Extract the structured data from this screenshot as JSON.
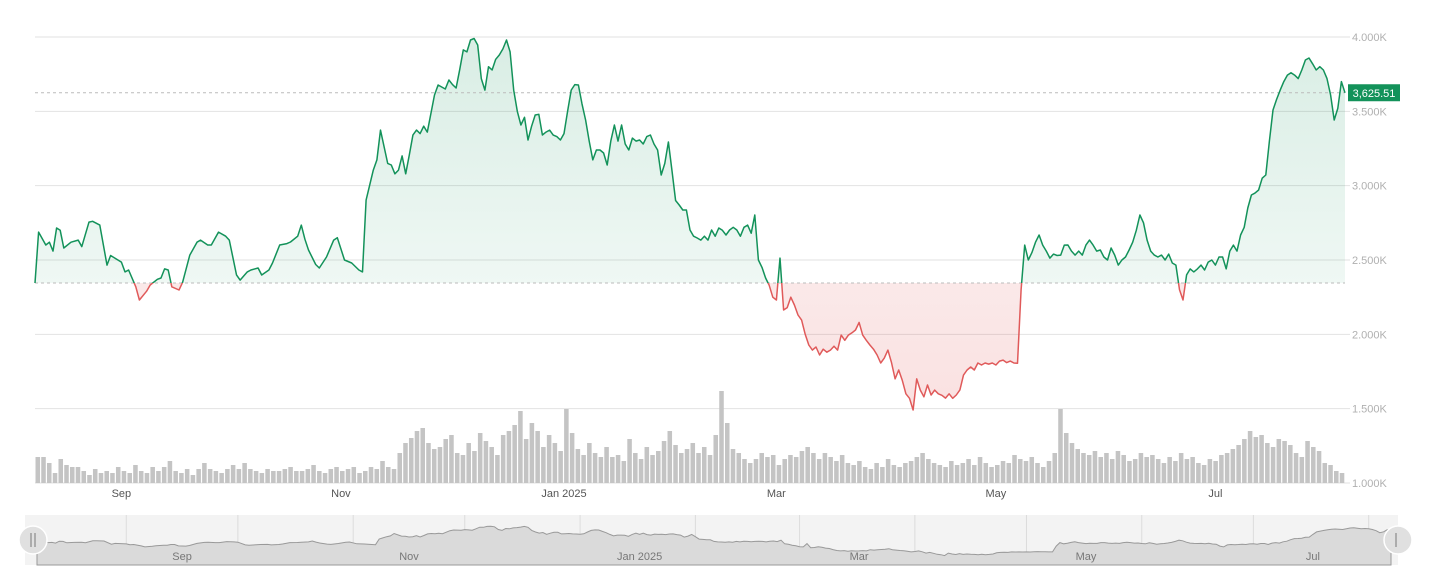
{
  "chart_data": {
    "type": "area",
    "title": "",
    "start_date": "2024-08-08",
    "current_price_label": "3,625.51",
    "baseline_price": 2345,
    "ylim": [
      1000,
      4000
    ],
    "y_ticks": [
      {
        "value": 4000,
        "label": "4.000K"
      },
      {
        "value": 3500,
        "label": "3.500K"
      },
      {
        "value": 3000,
        "label": "3.000K"
      },
      {
        "value": 2500,
        "label": "2.500K"
      },
      {
        "value": 2000,
        "label": "2.000K"
      },
      {
        "value": 1500,
        "label": "1.500K"
      },
      {
        "value": 1000,
        "label": "1.000K"
      }
    ],
    "x_ticks": [
      {
        "day": 24,
        "label": "Sep"
      },
      {
        "day": 85,
        "label": "Nov"
      },
      {
        "day": 147,
        "label": "Jan 2025"
      },
      {
        "day": 206,
        "label": "Mar"
      },
      {
        "day": 267,
        "label": "May"
      },
      {
        "day": 328,
        "label": "Jul"
      }
    ],
    "navigator_ticks": [
      {
        "day": 39,
        "label": "Sep"
      },
      {
        "day": 100,
        "label": "Nov"
      },
      {
        "day": 162,
        "label": "Jan 2025"
      },
      {
        "day": 221,
        "label": "Mar"
      },
      {
        "day": 282,
        "label": "May"
      },
      {
        "day": 343,
        "label": "Jul"
      }
    ],
    "navigator_month_lines": [
      24,
      54,
      85,
      115,
      146,
      177,
      205,
      236,
      266,
      297,
      327,
      358
    ],
    "colors": {
      "up": "#13925a",
      "down": "#e05a5a",
      "badge": "#13925a",
      "volume": "#c4c4c4"
    },
    "price_series": [
      [
        0,
        2345
      ],
      [
        1,
        2688
      ],
      [
        3,
        2601
      ],
      [
        4,
        2620
      ],
      [
        5,
        2560
      ],
      [
        6,
        2715
      ],
      [
        7,
        2700
      ],
      [
        8,
        2581
      ],
      [
        10,
        2620
      ],
      [
        12,
        2634
      ],
      [
        13,
        2590
      ],
      [
        15,
        2755
      ],
      [
        16,
        2760
      ],
      [
        18,
        2735
      ],
      [
        20,
        2466
      ],
      [
        21,
        2530
      ],
      [
        24,
        2486
      ],
      [
        25,
        2420
      ],
      [
        26,
        2433
      ],
      [
        28,
        2320
      ],
      [
        29,
        2231
      ],
      [
        31,
        2290
      ],
      [
        32,
        2332
      ],
      [
        34,
        2370
      ],
      [
        35,
        2379
      ],
      [
        36,
        2440
      ],
      [
        37,
        2433
      ],
      [
        38,
        2320
      ],
      [
        40,
        2298
      ],
      [
        41,
        2350
      ],
      [
        43,
        2533
      ],
      [
        45,
        2620
      ],
      [
        46,
        2634
      ],
      [
        48,
        2601
      ],
      [
        49,
        2601
      ],
      [
        51,
        2688
      ],
      [
        53,
        2660
      ],
      [
        54,
        2634
      ],
      [
        56,
        2400
      ],
      [
        57,
        2365
      ],
      [
        59,
        2420
      ],
      [
        60,
        2433
      ],
      [
        62,
        2446
      ],
      [
        63,
        2399
      ],
      [
        65,
        2433
      ],
      [
        66,
        2480
      ],
      [
        68,
        2601
      ],
      [
        70,
        2610
      ],
      [
        71,
        2621
      ],
      [
        73,
        2660
      ],
      [
        74,
        2735
      ],
      [
        75,
        2640
      ],
      [
        76,
        2567
      ],
      [
        78,
        2470
      ],
      [
        79,
        2446
      ],
      [
        81,
        2520
      ],
      [
        83,
        2634
      ],
      [
        84,
        2650
      ],
      [
        86,
        2500
      ],
      [
        88,
        2480
      ],
      [
        90,
        2433
      ],
      [
        91,
        2420
      ],
      [
        92,
        2903
      ],
      [
        94,
        3105
      ],
      [
        95,
        3173
      ],
      [
        96,
        3374
      ],
      [
        98,
        3150
      ],
      [
        99,
        3139
      ],
      [
        100,
        3080
      ],
      [
        101,
        3105
      ],
      [
        102,
        3200
      ],
      [
        103,
        3080
      ],
      [
        104,
        3206
      ],
      [
        105,
        3340
      ],
      [
        106,
        3374
      ],
      [
        107,
        3350
      ],
      [
        108,
        3400
      ],
      [
        109,
        3360
      ],
      [
        111,
        3610
      ],
      [
        112,
        3677
      ],
      [
        114,
        3650
      ],
      [
        115,
        3711
      ],
      [
        116,
        3680
      ],
      [
        117,
        3657
      ],
      [
        118,
        3780
      ],
      [
        119,
        3913
      ],
      [
        120,
        3900
      ],
      [
        121,
        3980
      ],
      [
        122,
        3990
      ],
      [
        123,
        3946
      ],
      [
        124,
        3720
      ],
      [
        125,
        3643
      ],
      [
        126,
        3800
      ],
      [
        127,
        3778
      ],
      [
        128,
        3850
      ],
      [
        129,
        3879
      ],
      [
        130,
        3920
      ],
      [
        131,
        3980
      ],
      [
        132,
        3900
      ],
      [
        133,
        3643
      ],
      [
        134,
        3500
      ],
      [
        135,
        3408
      ],
      [
        136,
        3460
      ],
      [
        137,
        3307
      ],
      [
        138,
        3400
      ],
      [
        139,
        3475
      ],
      [
        140,
        3480
      ],
      [
        141,
        3341
      ],
      [
        142,
        3360
      ],
      [
        143,
        3374
      ],
      [
        144,
        3340
      ],
      [
        145,
        3330
      ],
      [
        146,
        3307
      ],
      [
        147,
        3350
      ],
      [
        148,
        3500
      ],
      [
        149,
        3643
      ],
      [
        150,
        3680
      ],
      [
        151,
        3677
      ],
      [
        152,
        3550
      ],
      [
        153,
        3442
      ],
      [
        154,
        3300
      ],
      [
        155,
        3173
      ],
      [
        156,
        3240
      ],
      [
        157,
        3240
      ],
      [
        158,
        3220
      ],
      [
        159,
        3139
      ],
      [
        160,
        3300
      ],
      [
        161,
        3408
      ],
      [
        162,
        3300
      ],
      [
        163,
        3408
      ],
      [
        164,
        3280
      ],
      [
        165,
        3240
      ],
      [
        166,
        3320
      ],
      [
        167,
        3300
      ],
      [
        168,
        3307
      ],
      [
        169,
        3280
      ],
      [
        170,
        3330
      ],
      [
        171,
        3341
      ],
      [
        172,
        3280
      ],
      [
        173,
        3240
      ],
      [
        174,
        3072
      ],
      [
        175,
        3150
      ],
      [
        176,
        3294
      ],
      [
        177,
        3100
      ],
      [
        178,
        2900
      ],
      [
        179,
        2870
      ],
      [
        180,
        2836
      ],
      [
        181,
        2836
      ],
      [
        182,
        2702
      ],
      [
        183,
        2660
      ],
      [
        184,
        2648
      ],
      [
        185,
        2634
      ],
      [
        186,
        2660
      ],
      [
        187,
        2634
      ],
      [
        188,
        2702
      ],
      [
        189,
        2660
      ],
      [
        190,
        2715
      ],
      [
        191,
        2700
      ],
      [
        192,
        2668
      ],
      [
        193,
        2702
      ],
      [
        194,
        2720
      ],
      [
        195,
        2702
      ],
      [
        196,
        2660
      ],
      [
        197,
        2720
      ],
      [
        198,
        2735
      ],
      [
        199,
        2680
      ],
      [
        200,
        2803
      ],
      [
        201,
        2500
      ],
      [
        202,
        2450
      ],
      [
        203,
        2379
      ],
      [
        204,
        2330
      ],
      [
        205,
        2250
      ],
      [
        206,
        2231
      ],
      [
        207,
        2513
      ],
      [
        208,
        2164
      ],
      [
        209,
        2180
      ],
      [
        210,
        2250
      ],
      [
        211,
        2197
      ],
      [
        212,
        2130
      ],
      [
        213,
        2096
      ],
      [
        214,
        2000
      ],
      [
        215,
        1928
      ],
      [
        216,
        1894
      ],
      [
        217,
        1915
      ],
      [
        218,
        1861
      ],
      [
        219,
        1900
      ],
      [
        220,
        1880
      ],
      [
        221,
        1894
      ],
      [
        222,
        1920
      ],
      [
        223,
        1894
      ],
      [
        224,
        1995
      ],
      [
        225,
        1960
      ],
      [
        226,
        1995
      ],
      [
        227,
        2010
      ],
      [
        228,
        2029
      ],
      [
        229,
        2080
      ],
      [
        230,
        1995
      ],
      [
        231,
        1960
      ],
      [
        232,
        1928
      ],
      [
        233,
        1900
      ],
      [
        234,
        1861
      ],
      [
        235,
        1807
      ],
      [
        236,
        1840
      ],
      [
        237,
        1894
      ],
      [
        238,
        1810
      ],
      [
        239,
        1700
      ],
      [
        240,
        1760
      ],
      [
        241,
        1690
      ],
      [
        242,
        1600
      ],
      [
        243,
        1570
      ],
      [
        244,
        1491
      ],
      [
        245,
        1700
      ],
      [
        246,
        1625
      ],
      [
        247,
        1580
      ],
      [
        248,
        1659
      ],
      [
        249,
        1592
      ],
      [
        250,
        1625
      ],
      [
        251,
        1600
      ],
      [
        252,
        1590
      ],
      [
        253,
        1571
      ],
      [
        254,
        1600
      ],
      [
        255,
        1570
      ],
      [
        256,
        1592
      ],
      [
        257,
        1626
      ],
      [
        258,
        1726
      ],
      [
        259,
        1760
      ],
      [
        260,
        1780
      ],
      [
        261,
        1760
      ],
      [
        262,
        1807
      ],
      [
        263,
        1794
      ],
      [
        264,
        1807
      ],
      [
        265,
        1800
      ],
      [
        266,
        1807
      ],
      [
        267,
        1794
      ],
      [
        268,
        1820
      ],
      [
        269,
        1827
      ],
      [
        270,
        1810
      ],
      [
        271,
        1820
      ],
      [
        272,
        1807
      ],
      [
        273,
        1805
      ],
      [
        274,
        2300
      ],
      [
        275,
        2600
      ],
      [
        276,
        2500
      ],
      [
        277,
        2550
      ],
      [
        278,
        2620
      ],
      [
        279,
        2668
      ],
      [
        280,
        2600
      ],
      [
        281,
        2560
      ],
      [
        282,
        2513
      ],
      [
        283,
        2540
      ],
      [
        284,
        2530
      ],
      [
        285,
        2533
      ],
      [
        286,
        2600
      ],
      [
        287,
        2601
      ],
      [
        288,
        2560
      ],
      [
        289,
        2533
      ],
      [
        290,
        2560
      ],
      [
        291,
        2533
      ],
      [
        292,
        2600
      ],
      [
        293,
        2634
      ],
      [
        294,
        2600
      ],
      [
        295,
        2560
      ],
      [
        296,
        2567
      ],
      [
        297,
        2520
      ],
      [
        298,
        2500
      ],
      [
        299,
        2581
      ],
      [
        300,
        2533
      ],
      [
        301,
        2466
      ],
      [
        302,
        2500
      ],
      [
        303,
        2520
      ],
      [
        304,
        2567
      ],
      [
        305,
        2620
      ],
      [
        306,
        2700
      ],
      [
        307,
        2803
      ],
      [
        308,
        2750
      ],
      [
        309,
        2634
      ],
      [
        310,
        2560
      ],
      [
        311,
        2533
      ],
      [
        312,
        2520
      ],
      [
        313,
        2533
      ],
      [
        314,
        2500
      ],
      [
        315,
        2540
      ],
      [
        316,
        2480
      ],
      [
        317,
        2466
      ],
      [
        318,
        2300
      ],
      [
        319,
        2231
      ],
      [
        320,
        2400
      ],
      [
        321,
        2440
      ],
      [
        322,
        2420
      ],
      [
        323,
        2440
      ],
      [
        324,
        2466
      ],
      [
        325,
        2433
      ],
      [
        326,
        2486
      ],
      [
        327,
        2500
      ],
      [
        328,
        2466
      ],
      [
        329,
        2520
      ],
      [
        330,
        2520
      ],
      [
        331,
        2440
      ],
      [
        332,
        2560
      ],
      [
        333,
        2600
      ],
      [
        334,
        2560
      ],
      [
        335,
        2668
      ],
      [
        336,
        2720
      ],
      [
        337,
        2850
      ],
      [
        338,
        2937
      ],
      [
        339,
        2950
      ],
      [
        340,
        2971
      ],
      [
        341,
        3050
      ],
      [
        342,
        3072
      ],
      [
        343,
        3300
      ],
      [
        344,
        3509
      ],
      [
        345,
        3580
      ],
      [
        346,
        3643
      ],
      [
        347,
        3700
      ],
      [
        348,
        3744
      ],
      [
        349,
        3760
      ],
      [
        350,
        3744
      ],
      [
        351,
        3720
      ],
      [
        352,
        3778
      ],
      [
        353,
        3845
      ],
      [
        354,
        3859
      ],
      [
        355,
        3820
      ],
      [
        356,
        3778
      ],
      [
        357,
        3800
      ],
      [
        358,
        3778
      ],
      [
        359,
        3720
      ],
      [
        360,
        3610
      ],
      [
        361,
        3442
      ],
      [
        362,
        3520
      ],
      [
        363,
        3700
      ],
      [
        364,
        3625
      ]
    ],
    "volume_relative": [
      26,
      26,
      20,
      10,
      24,
      18,
      16,
      16,
      12,
      8,
      14,
      10,
      12,
      10,
      16,
      12,
      10,
      18,
      12,
      10,
      16,
      12,
      16,
      22,
      12,
      10,
      14,
      8,
      14,
      20,
      14,
      12,
      10,
      14,
      18,
      14,
      20,
      14,
      12,
      10,
      14,
      12,
      12,
      14,
      16,
      12,
      12,
      14,
      18,
      12,
      10,
      14,
      16,
      12,
      14,
      16,
      10,
      12,
      16,
      14,
      22,
      16,
      14,
      30,
      40,
      45,
      52,
      55,
      40,
      34,
      36,
      44,
      48,
      30,
      28,
      40,
      32,
      50,
      42,
      36,
      28,
      48,
      52,
      58,
      72,
      44,
      60,
      52,
      36,
      48,
      40,
      32,
      74,
      50,
      34,
      28,
      40,
      30,
      26,
      36,
      26,
      28,
      22,
      44,
      30,
      24,
      36,
      28,
      32,
      42,
      52,
      38,
      30,
      34,
      40,
      30,
      36,
      28,
      48,
      92,
      60,
      34,
      30,
      24,
      20,
      24,
      30,
      26,
      28,
      18,
      24,
      28,
      26,
      32,
      36,
      30,
      24,
      30,
      26,
      22,
      28,
      20,
      18,
      22,
      16,
      14,
      20,
      16,
      24,
      18,
      16,
      20,
      22,
      26,
      30,
      24,
      20,
      18,
      16,
      22,
      18,
      20,
      24,
      18,
      26,
      20,
      16,
      18,
      22,
      20,
      28,
      24,
      22,
      26,
      20,
      16,
      22,
      30,
      74,
      50,
      40,
      34,
      30,
      28,
      32,
      26,
      30,
      24,
      32,
      28,
      22,
      24,
      30,
      26,
      28,
      24,
      20,
      26,
      22,
      30,
      24,
      26,
      20,
      18,
      24,
      22,
      28,
      30,
      34,
      38,
      44,
      52,
      46,
      48,
      40,
      36,
      44,
      42,
      38,
      30,
      26,
      42,
      36,
      32,
      20,
      18,
      12,
      10
    ]
  }
}
